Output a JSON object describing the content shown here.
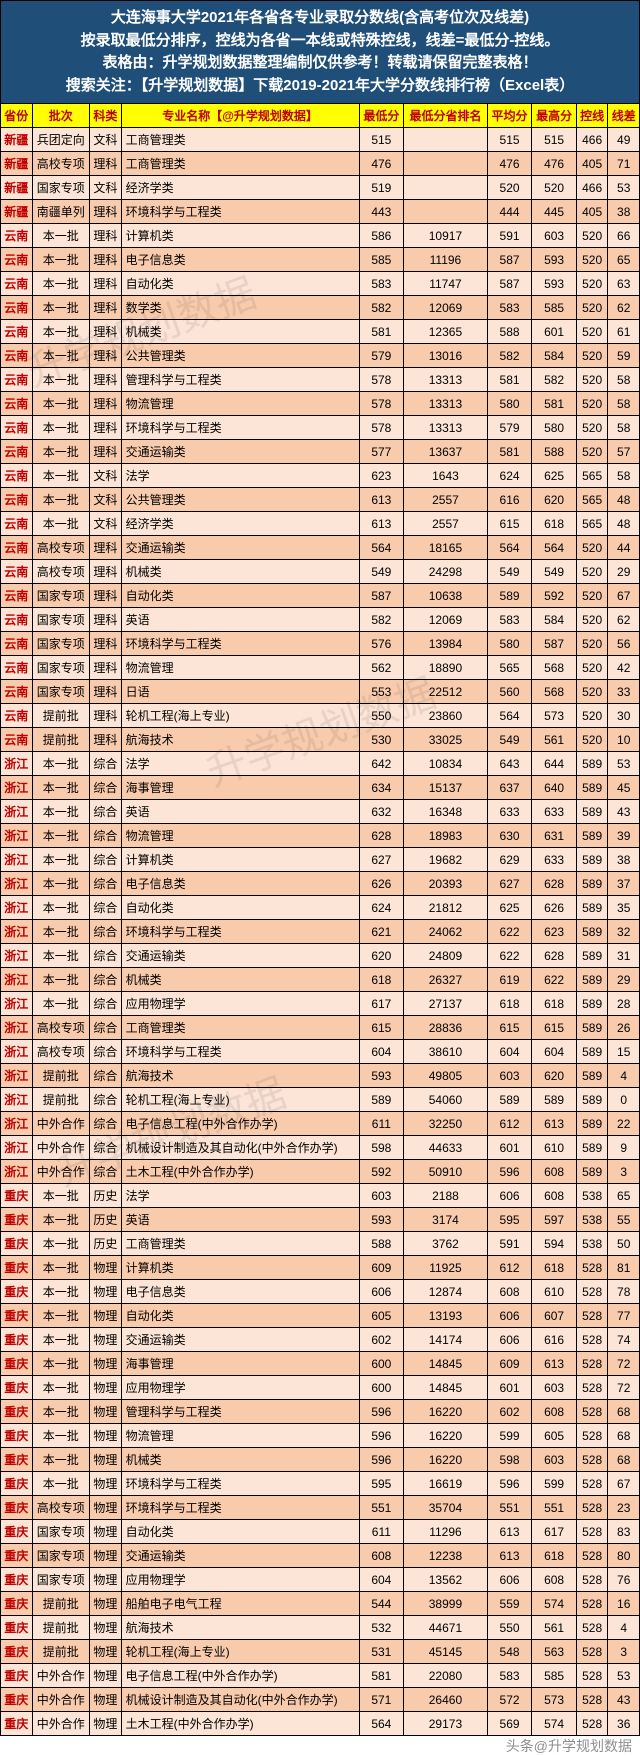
{
  "header": {
    "line1": "大连海事大学2021年各省各专业录取分数线(含高考位次及线差)",
    "line2": "按录取最低分排序，控线为各省一本线或特殊控线，线差=最低分-控线。",
    "line3": "表格由：升学规划数据整理编制仅供参考！转载请保留完整表格！",
    "line4": "搜索关注：【升学规划数据】下载2019-2021年大学分数线排行榜（Excel表）"
  },
  "columns": [
    "省份",
    "批次",
    "科类",
    "专业名称【@升学规划数据】",
    "最低分",
    "最低分省排名",
    "平均分",
    "最高分",
    "控线",
    "线差"
  ],
  "rows": [
    [
      "新疆",
      "兵团定向",
      "文科",
      "工商管理类",
      "515",
      "",
      "515",
      "515",
      "466",
      "49"
    ],
    [
      "新疆",
      "高校专项",
      "理科",
      "工商管理类",
      "476",
      "",
      "476",
      "476",
      "405",
      "71"
    ],
    [
      "新疆",
      "国家专项",
      "文科",
      "经济学类",
      "519",
      "",
      "520",
      "520",
      "466",
      "53"
    ],
    [
      "新疆",
      "南疆单列",
      "理科",
      "环境科学与工程类",
      "443",
      "",
      "444",
      "445",
      "405",
      "38"
    ],
    [
      "云南",
      "本一批",
      "理科",
      "计算机类",
      "586",
      "10917",
      "591",
      "603",
      "520",
      "66"
    ],
    [
      "云南",
      "本一批",
      "理科",
      "电子信息类",
      "585",
      "11196",
      "587",
      "593",
      "520",
      "65"
    ],
    [
      "云南",
      "本一批",
      "理科",
      "自动化类",
      "583",
      "11747",
      "587",
      "593",
      "520",
      "63"
    ],
    [
      "云南",
      "本一批",
      "理科",
      "数学类",
      "582",
      "12069",
      "583",
      "585",
      "520",
      "62"
    ],
    [
      "云南",
      "本一批",
      "理科",
      "机械类",
      "581",
      "12365",
      "588",
      "601",
      "520",
      "61"
    ],
    [
      "云南",
      "本一批",
      "理科",
      "公共管理类",
      "579",
      "13016",
      "582",
      "584",
      "520",
      "59"
    ],
    [
      "云南",
      "本一批",
      "理科",
      "管理科学与工程类",
      "578",
      "13313",
      "581",
      "582",
      "520",
      "58"
    ],
    [
      "云南",
      "本一批",
      "理科",
      "物流管理",
      "578",
      "13313",
      "580",
      "581",
      "520",
      "58"
    ],
    [
      "云南",
      "本一批",
      "理科",
      "环境科学与工程类",
      "578",
      "13313",
      "579",
      "580",
      "520",
      "58"
    ],
    [
      "云南",
      "本一批",
      "理科",
      "交通运输类",
      "577",
      "13637",
      "581",
      "588",
      "520",
      "57"
    ],
    [
      "云南",
      "本一批",
      "文科",
      "法学",
      "623",
      "1643",
      "624",
      "625",
      "565",
      "58"
    ],
    [
      "云南",
      "本一批",
      "文科",
      "公共管理类",
      "613",
      "2557",
      "616",
      "620",
      "565",
      "48"
    ],
    [
      "云南",
      "本一批",
      "文科",
      "经济学类",
      "613",
      "2557",
      "615",
      "618",
      "565",
      "48"
    ],
    [
      "云南",
      "高校专项",
      "理科",
      "交通运输类",
      "564",
      "18165",
      "564",
      "564",
      "520",
      "44"
    ],
    [
      "云南",
      "高校专项",
      "理科",
      "机械类",
      "549",
      "24298",
      "549",
      "549",
      "520",
      "29"
    ],
    [
      "云南",
      "国家专项",
      "理科",
      "自动化类",
      "587",
      "10638",
      "589",
      "592",
      "520",
      "67"
    ],
    [
      "云南",
      "国家专项",
      "理科",
      "英语",
      "582",
      "12069",
      "583",
      "584",
      "520",
      "62"
    ],
    [
      "云南",
      "国家专项",
      "理科",
      "环境科学与工程类",
      "576",
      "13984",
      "580",
      "587",
      "520",
      "56"
    ],
    [
      "云南",
      "国家专项",
      "理科",
      "物流管理",
      "562",
      "18890",
      "565",
      "568",
      "520",
      "42"
    ],
    [
      "云南",
      "国家专项",
      "理科",
      "日语",
      "553",
      "22512",
      "560",
      "568",
      "520",
      "33"
    ],
    [
      "云南",
      "提前批",
      "理科",
      "轮机工程(海上专业)",
      "550",
      "23860",
      "564",
      "573",
      "520",
      "30"
    ],
    [
      "云南",
      "提前批",
      "理科",
      "航海技术",
      "530",
      "33025",
      "549",
      "561",
      "520",
      "10"
    ],
    [
      "浙江",
      "本一批",
      "综合",
      "法学",
      "642",
      "10834",
      "643",
      "644",
      "589",
      "53"
    ],
    [
      "浙江",
      "本一批",
      "综合",
      "海事管理",
      "634",
      "15137",
      "637",
      "640",
      "589",
      "45"
    ],
    [
      "浙江",
      "本一批",
      "综合",
      "英语",
      "632",
      "16348",
      "633",
      "633",
      "589",
      "43"
    ],
    [
      "浙江",
      "本一批",
      "综合",
      "物流管理",
      "628",
      "18983",
      "630",
      "631",
      "589",
      "39"
    ],
    [
      "浙江",
      "本一批",
      "综合",
      "计算机类",
      "627",
      "19682",
      "629",
      "633",
      "589",
      "38"
    ],
    [
      "浙江",
      "本一批",
      "综合",
      "电子信息类",
      "626",
      "20393",
      "627",
      "628",
      "589",
      "37"
    ],
    [
      "浙江",
      "本一批",
      "综合",
      "自动化类",
      "624",
      "21812",
      "625",
      "626",
      "589",
      "35"
    ],
    [
      "浙江",
      "本一批",
      "综合",
      "环境科学与工程类",
      "621",
      "24062",
      "622",
      "623",
      "589",
      "32"
    ],
    [
      "浙江",
      "本一批",
      "综合",
      "交通运输类",
      "620",
      "24809",
      "622",
      "628",
      "589",
      "31"
    ],
    [
      "浙江",
      "本一批",
      "综合",
      "机械类",
      "618",
      "26327",
      "619",
      "622",
      "589",
      "29"
    ],
    [
      "浙江",
      "本一批",
      "综合",
      "应用物理学",
      "617",
      "27137",
      "618",
      "618",
      "589",
      "28"
    ],
    [
      "浙江",
      "高校专项",
      "综合",
      "工商管理类",
      "615",
      "28836",
      "615",
      "615",
      "589",
      "26"
    ],
    [
      "浙江",
      "高校专项",
      "综合",
      "环境科学与工程类",
      "604",
      "38610",
      "604",
      "604",
      "589",
      "15"
    ],
    [
      "浙江",
      "提前批",
      "综合",
      "航海技术",
      "593",
      "49805",
      "603",
      "620",
      "589",
      "4"
    ],
    [
      "浙江",
      "提前批",
      "综合",
      "轮机工程(海上专业)",
      "589",
      "54060",
      "589",
      "589",
      "589",
      "0"
    ],
    [
      "浙江",
      "中外合作",
      "综合",
      "电子信息工程(中外合作办学)",
      "611",
      "32250",
      "612",
      "613",
      "589",
      "22"
    ],
    [
      "浙江",
      "中外合作",
      "综合",
      "机械设计制造及其自动化(中外合作办学)",
      "598",
      "44633",
      "601",
      "610",
      "589",
      "9"
    ],
    [
      "浙江",
      "中外合作",
      "综合",
      "土木工程(中外合作办学)",
      "592",
      "50910",
      "596",
      "608",
      "589",
      "3"
    ],
    [
      "重庆",
      "本一批",
      "历史",
      "法学",
      "603",
      "2188",
      "606",
      "608",
      "538",
      "65"
    ],
    [
      "重庆",
      "本一批",
      "历史",
      "英语",
      "593",
      "3174",
      "595",
      "597",
      "538",
      "55"
    ],
    [
      "重庆",
      "本一批",
      "历史",
      "工商管理类",
      "588",
      "3762",
      "591",
      "594",
      "538",
      "50"
    ],
    [
      "重庆",
      "本一批",
      "物理",
      "计算机类",
      "609",
      "11925",
      "612",
      "618",
      "528",
      "81"
    ],
    [
      "重庆",
      "本一批",
      "物理",
      "电子信息类",
      "606",
      "12874",
      "608",
      "610",
      "528",
      "78"
    ],
    [
      "重庆",
      "本一批",
      "物理",
      "自动化类",
      "605",
      "13193",
      "606",
      "607",
      "528",
      "77"
    ],
    [
      "重庆",
      "本一批",
      "物理",
      "交通运输类",
      "602",
      "14174",
      "606",
      "616",
      "528",
      "74"
    ],
    [
      "重庆",
      "本一批",
      "物理",
      "海事管理",
      "600",
      "14845",
      "609",
      "613",
      "528",
      "72"
    ],
    [
      "重庆",
      "本一批",
      "物理",
      "应用物理学",
      "600",
      "14845",
      "601",
      "603",
      "528",
      "72"
    ],
    [
      "重庆",
      "本一批",
      "物理",
      "管理科学与工程类",
      "596",
      "16220",
      "602",
      "608",
      "528",
      "68"
    ],
    [
      "重庆",
      "本一批",
      "物理",
      "物流管理",
      "596",
      "16220",
      "599",
      "605",
      "528",
      "68"
    ],
    [
      "重庆",
      "本一批",
      "物理",
      "机械类",
      "596",
      "16220",
      "598",
      "603",
      "528",
      "68"
    ],
    [
      "重庆",
      "本一批",
      "物理",
      "环境科学与工程类",
      "595",
      "16619",
      "596",
      "599",
      "528",
      "67"
    ],
    [
      "重庆",
      "高校专项",
      "物理",
      "环境科学与工程类",
      "551",
      "35704",
      "551",
      "551",
      "528",
      "23"
    ],
    [
      "重庆",
      "国家专项",
      "物理",
      "自动化类",
      "611",
      "11296",
      "613",
      "617",
      "528",
      "83"
    ],
    [
      "重庆",
      "国家专项",
      "物理",
      "交通运输类",
      "608",
      "12238",
      "613",
      "618",
      "528",
      "80"
    ],
    [
      "重庆",
      "国家专项",
      "物理",
      "应用物理学",
      "604",
      "13562",
      "606",
      "608",
      "528",
      "76"
    ],
    [
      "重庆",
      "提前批",
      "物理",
      "船舶电子电气工程",
      "544",
      "38999",
      "559",
      "574",
      "528",
      "16"
    ],
    [
      "重庆",
      "提前批",
      "物理",
      "航海技术",
      "532",
      "44671",
      "550",
      "561",
      "528",
      "4"
    ],
    [
      "重庆",
      "提前批",
      "物理",
      "轮机工程(海上专业)",
      "531",
      "45145",
      "548",
      "563",
      "528",
      "3"
    ],
    [
      "重庆",
      "中外合作",
      "物理",
      "电子信息工程(中外合作办学)",
      "581",
      "22080",
      "583",
      "585",
      "528",
      "53"
    ],
    [
      "重庆",
      "中外合作",
      "物理",
      "机械设计制造及其自动化(中外合作办学)",
      "571",
      "26460",
      "572",
      "573",
      "528",
      "43"
    ],
    [
      "重庆",
      "中外合作",
      "物理",
      "土木工程(中外合作办学)",
      "564",
      "29173",
      "569",
      "574",
      "528",
      "36"
    ]
  ],
  "footer_mark": "头条@升学规划数据",
  "watermark_text": "升学规划数据"
}
